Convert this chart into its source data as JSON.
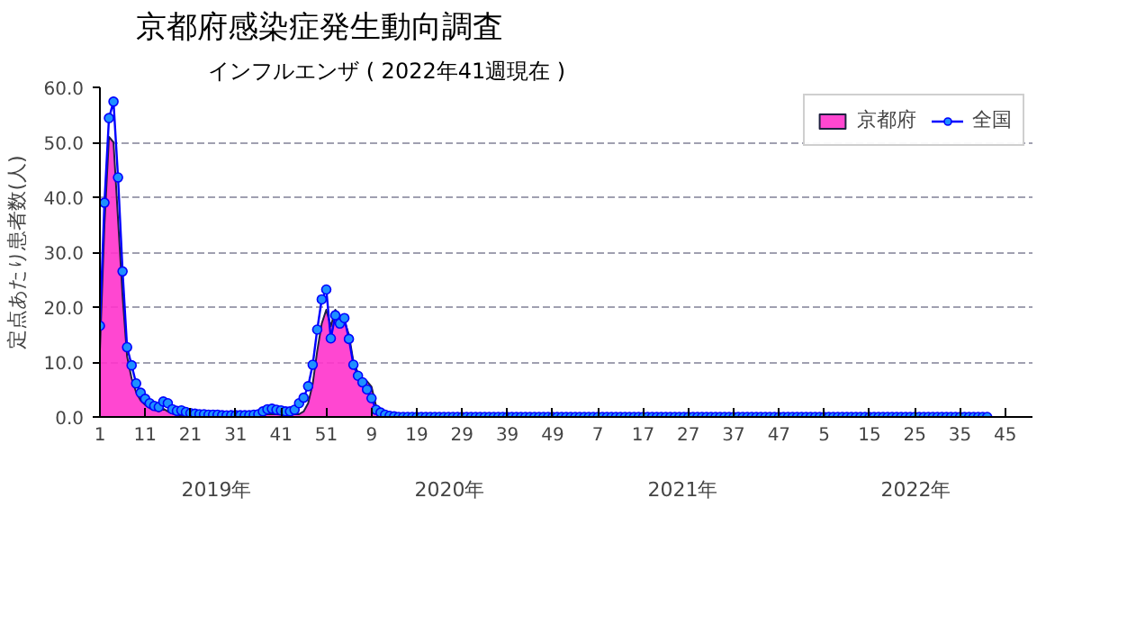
{
  "chart_data": {
    "type": "line",
    "title": "京都府感染症発生動向調査",
    "subtitle": "インフルエンザ ( 2022年41週現在 )",
    "ylabel": "定点あたり患者数(人)",
    "categories": [
      "1",
      null,
      null,
      null,
      null,
      null,
      null,
      null,
      null,
      null,
      "11",
      null,
      null,
      null,
      null,
      null,
      null,
      null,
      null,
      null,
      "21",
      null,
      null,
      null,
      null,
      null,
      null,
      null,
      null,
      null,
      "31",
      null,
      null,
      null,
      null,
      null,
      null,
      null,
      null,
      null,
      "41",
      null,
      null,
      null,
      null,
      null,
      null,
      null,
      null,
      null,
      "51",
      null,
      null,
      null,
      null,
      null,
      null,
      null,
      null,
      null,
      "9",
      null,
      null,
      null,
      null,
      null,
      null,
      null,
      null,
      null,
      "19",
      null,
      null,
      null,
      null,
      null,
      null,
      null,
      null,
      null,
      "29",
      null,
      null,
      null,
      null,
      null,
      null,
      null,
      null,
      null,
      "39",
      null,
      null,
      null,
      null,
      null,
      null,
      null,
      null,
      null,
      "49",
      null,
      null,
      null,
      null,
      null,
      null,
      null,
      null,
      null,
      "7",
      null,
      null,
      null,
      null,
      null,
      null,
      null,
      null,
      null,
      "17",
      null,
      null,
      null,
      null,
      null,
      null,
      null,
      null,
      null,
      "27",
      null,
      null,
      null,
      null,
      null,
      null,
      null,
      null,
      null,
      "37",
      null,
      null,
      null,
      null,
      null,
      null,
      null,
      null,
      null,
      "47",
      null,
      null,
      null,
      null,
      null,
      null,
      null,
      null,
      null,
      "5",
      null,
      null,
      null,
      null,
      null,
      null,
      null,
      null,
      null,
      "15",
      null,
      null,
      null,
      null,
      null,
      null,
      null,
      null,
      null,
      "25",
      null,
      null,
      null,
      null,
      null,
      null,
      null,
      null,
      null,
      "35",
      null,
      null,
      null,
      null,
      null,
      null,
      null,
      null,
      null,
      "45",
      null,
      null,
      null,
      null,
      null,
      null
    ],
    "series": [
      {
        "name": "京都府",
        "type": "area",
        "color": "#ff33cc",
        "values": [
          12,
          35,
          51,
          50,
          36,
          22,
          11,
          7,
          4.5,
          3,
          2.2,
          1.6,
          1.3,
          1.0,
          1.5,
          1.0,
          0.6,
          0.4,
          0.3,
          0.3,
          0.2,
          0.2,
          0.2,
          0.2,
          0.2,
          0.2,
          0.2,
          0.2,
          0.2,
          0.2,
          0.2,
          0.2,
          0.2,
          0.2,
          0.2,
          0.2,
          0.4,
          0.5,
          0.5,
          0.5,
          0.4,
          0.4,
          0.4,
          0.5,
          0.5,
          1.0,
          2.5,
          6,
          12,
          17,
          19.5,
          16.5,
          19.5,
          18,
          17.5,
          15,
          10,
          8,
          7,
          6.5,
          5.5,
          2,
          0.5,
          0,
          0,
          0,
          0,
          0,
          0,
          0,
          0,
          0,
          0,
          0,
          0,
          0,
          0,
          0,
          0,
          0,
          0,
          0,
          0,
          0,
          0,
          0,
          0,
          0,
          0,
          0,
          0,
          0,
          0,
          0,
          0,
          0,
          0,
          0,
          0,
          0,
          0,
          0,
          0,
          0,
          0,
          0,
          0,
          0,
          0,
          0,
          0,
          0,
          0,
          0,
          0,
          0,
          0,
          0,
          0,
          0,
          0,
          0,
          0,
          0,
          0,
          0,
          0,
          0,
          0,
          0,
          0,
          0,
          0,
          0,
          0,
          0,
          0,
          0,
          0,
          0,
          0,
          0,
          0,
          0,
          0,
          0,
          0,
          0,
          0,
          0,
          0,
          0,
          0,
          0,
          0,
          0,
          0,
          0,
          0,
          0,
          0,
          0,
          0,
          0,
          0,
          0,
          0,
          0,
          0,
          0,
          0,
          0,
          0,
          0,
          0,
          0,
          0,
          0,
          0,
          0,
          0,
          0,
          0,
          0,
          0,
          0,
          0,
          0,
          0,
          0,
          0,
          0,
          0,
          0,
          0,
          0,
          0,
          null,
          null,
          null,
          null,
          null,
          null,
          null,
          null,
          null,
          null
        ]
      },
      {
        "name": "全国",
        "color": "#0000ff",
        "marker": "circle",
        "values": [
          16.6,
          39.0,
          54.4,
          57.4,
          43.6,
          26.5,
          12.7,
          9.4,
          6.1,
          4.4,
          3.3,
          2.5,
          2.0,
          1.8,
          2.8,
          2.5,
          1.4,
          1.1,
          1.2,
          0.9,
          0.7,
          0.6,
          0.5,
          0.5,
          0.4,
          0.4,
          0.4,
          0.3,
          0.3,
          0.3,
          0.3,
          0.3,
          0.3,
          0.3,
          0.4,
          0.5,
          1.0,
          1.4,
          1.5,
          1.3,
          1.2,
          1.0,
          1.0,
          1.3,
          2.5,
          3.5,
          5.6,
          9.5,
          15.9,
          21.4,
          23.2,
          14.3,
          18.5,
          17.0,
          18.0,
          14.2,
          9.5,
          7.5,
          6.3,
          5.0,
          3.4,
          1.3,
          0.8,
          0.4,
          0.2,
          0.1,
          0,
          0,
          0,
          0,
          0,
          0,
          0,
          0,
          0,
          0,
          0,
          0,
          0,
          0,
          0,
          0,
          0,
          0,
          0,
          0,
          0,
          0,
          0,
          0,
          0,
          0,
          0,
          0,
          0,
          0,
          0,
          0,
          0,
          0,
          0,
          0,
          0,
          0,
          0,
          0,
          0,
          0,
          0,
          0,
          0,
          0,
          0,
          0,
          0,
          0,
          0,
          0,
          0,
          0,
          0,
          0,
          0,
          0,
          0,
          0,
          0,
          0,
          0,
          0,
          0,
          0,
          0,
          0,
          0,
          0,
          0,
          0,
          0,
          0,
          0,
          0,
          0,
          0,
          0,
          0,
          0,
          0,
          0,
          0,
          0,
          0,
          0,
          0,
          0,
          0,
          0,
          0,
          0,
          0,
          0,
          0,
          0,
          0,
          0,
          0,
          0,
          0,
          0,
          0,
          0,
          0,
          0,
          0,
          0,
          0,
          0,
          0,
          0,
          0,
          0,
          0,
          0,
          0,
          0,
          0,
          0,
          0,
          0,
          0,
          0,
          0,
          0,
          0,
          0,
          0,
          0,
          null,
          null,
          null,
          null,
          null,
          null,
          null,
          null,
          null,
          null
        ]
      }
    ],
    "ylim": [
      0,
      60
    ],
    "yticks": [
      {
        "value": 0,
        "label": "0.0"
      },
      {
        "value": 10,
        "label": "10.0"
      },
      {
        "value": 20,
        "label": "20.0"
      },
      {
        "value": 30,
        "label": "30.0"
      },
      {
        "value": 40,
        "label": "40.0"
      },
      {
        "value": 50,
        "label": "50.0"
      },
      {
        "value": 60,
        "label": "60.0"
      }
    ],
    "annotations": [
      "2019年",
      "2020年",
      "2021年",
      "2022年"
    ],
    "grid": "y",
    "legend": "top right",
    "line_style": "solid"
  }
}
